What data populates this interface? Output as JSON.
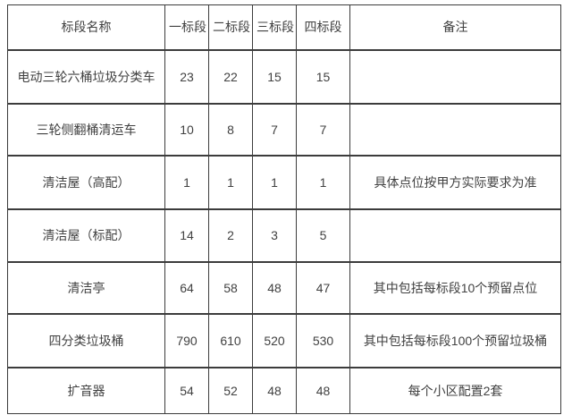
{
  "colors": {
    "background": "#ffffff",
    "border": "#3c3c3c",
    "text": "#414141"
  },
  "table": {
    "headers": {
      "name": "标段名称",
      "section1": "一标段",
      "section2": "二标段",
      "section3": "三标段",
      "section4": "四标段",
      "note": "备注"
    },
    "rows": [
      {
        "name": "电动三轮六桶垃圾分类车",
        "s1": "23",
        "s2": "22",
        "s3": "15",
        "s4": "15",
        "note": ""
      },
      {
        "name": "三轮侧翻桶清运车",
        "s1": "10",
        "s2": "8",
        "s3": "7",
        "s4": "7",
        "note": ""
      },
      {
        "name": "清洁屋（高配）",
        "s1": "1",
        "s2": "1",
        "s3": "1",
        "s4": "1",
        "note": "具体点位按甲方实际要求为准"
      },
      {
        "name": "清洁屋（标配）",
        "s1": "14",
        "s2": "2",
        "s3": "3",
        "s4": "5",
        "note": ""
      },
      {
        "name": "清洁亭",
        "s1": "64",
        "s2": "58",
        "s3": "48",
        "s4": "47",
        "note": "其中包括每标段10个预留点位"
      },
      {
        "name": "四分类垃圾桶",
        "s1": "790",
        "s2": "610",
        "s3": "520",
        "s4": "530",
        "note": "其中包括每标段100个预留垃圾桶"
      },
      {
        "name": "扩音器",
        "s1": "54",
        "s2": "52",
        "s3": "48",
        "s4": "48",
        "note": "每个小区配置2套"
      }
    ]
  }
}
